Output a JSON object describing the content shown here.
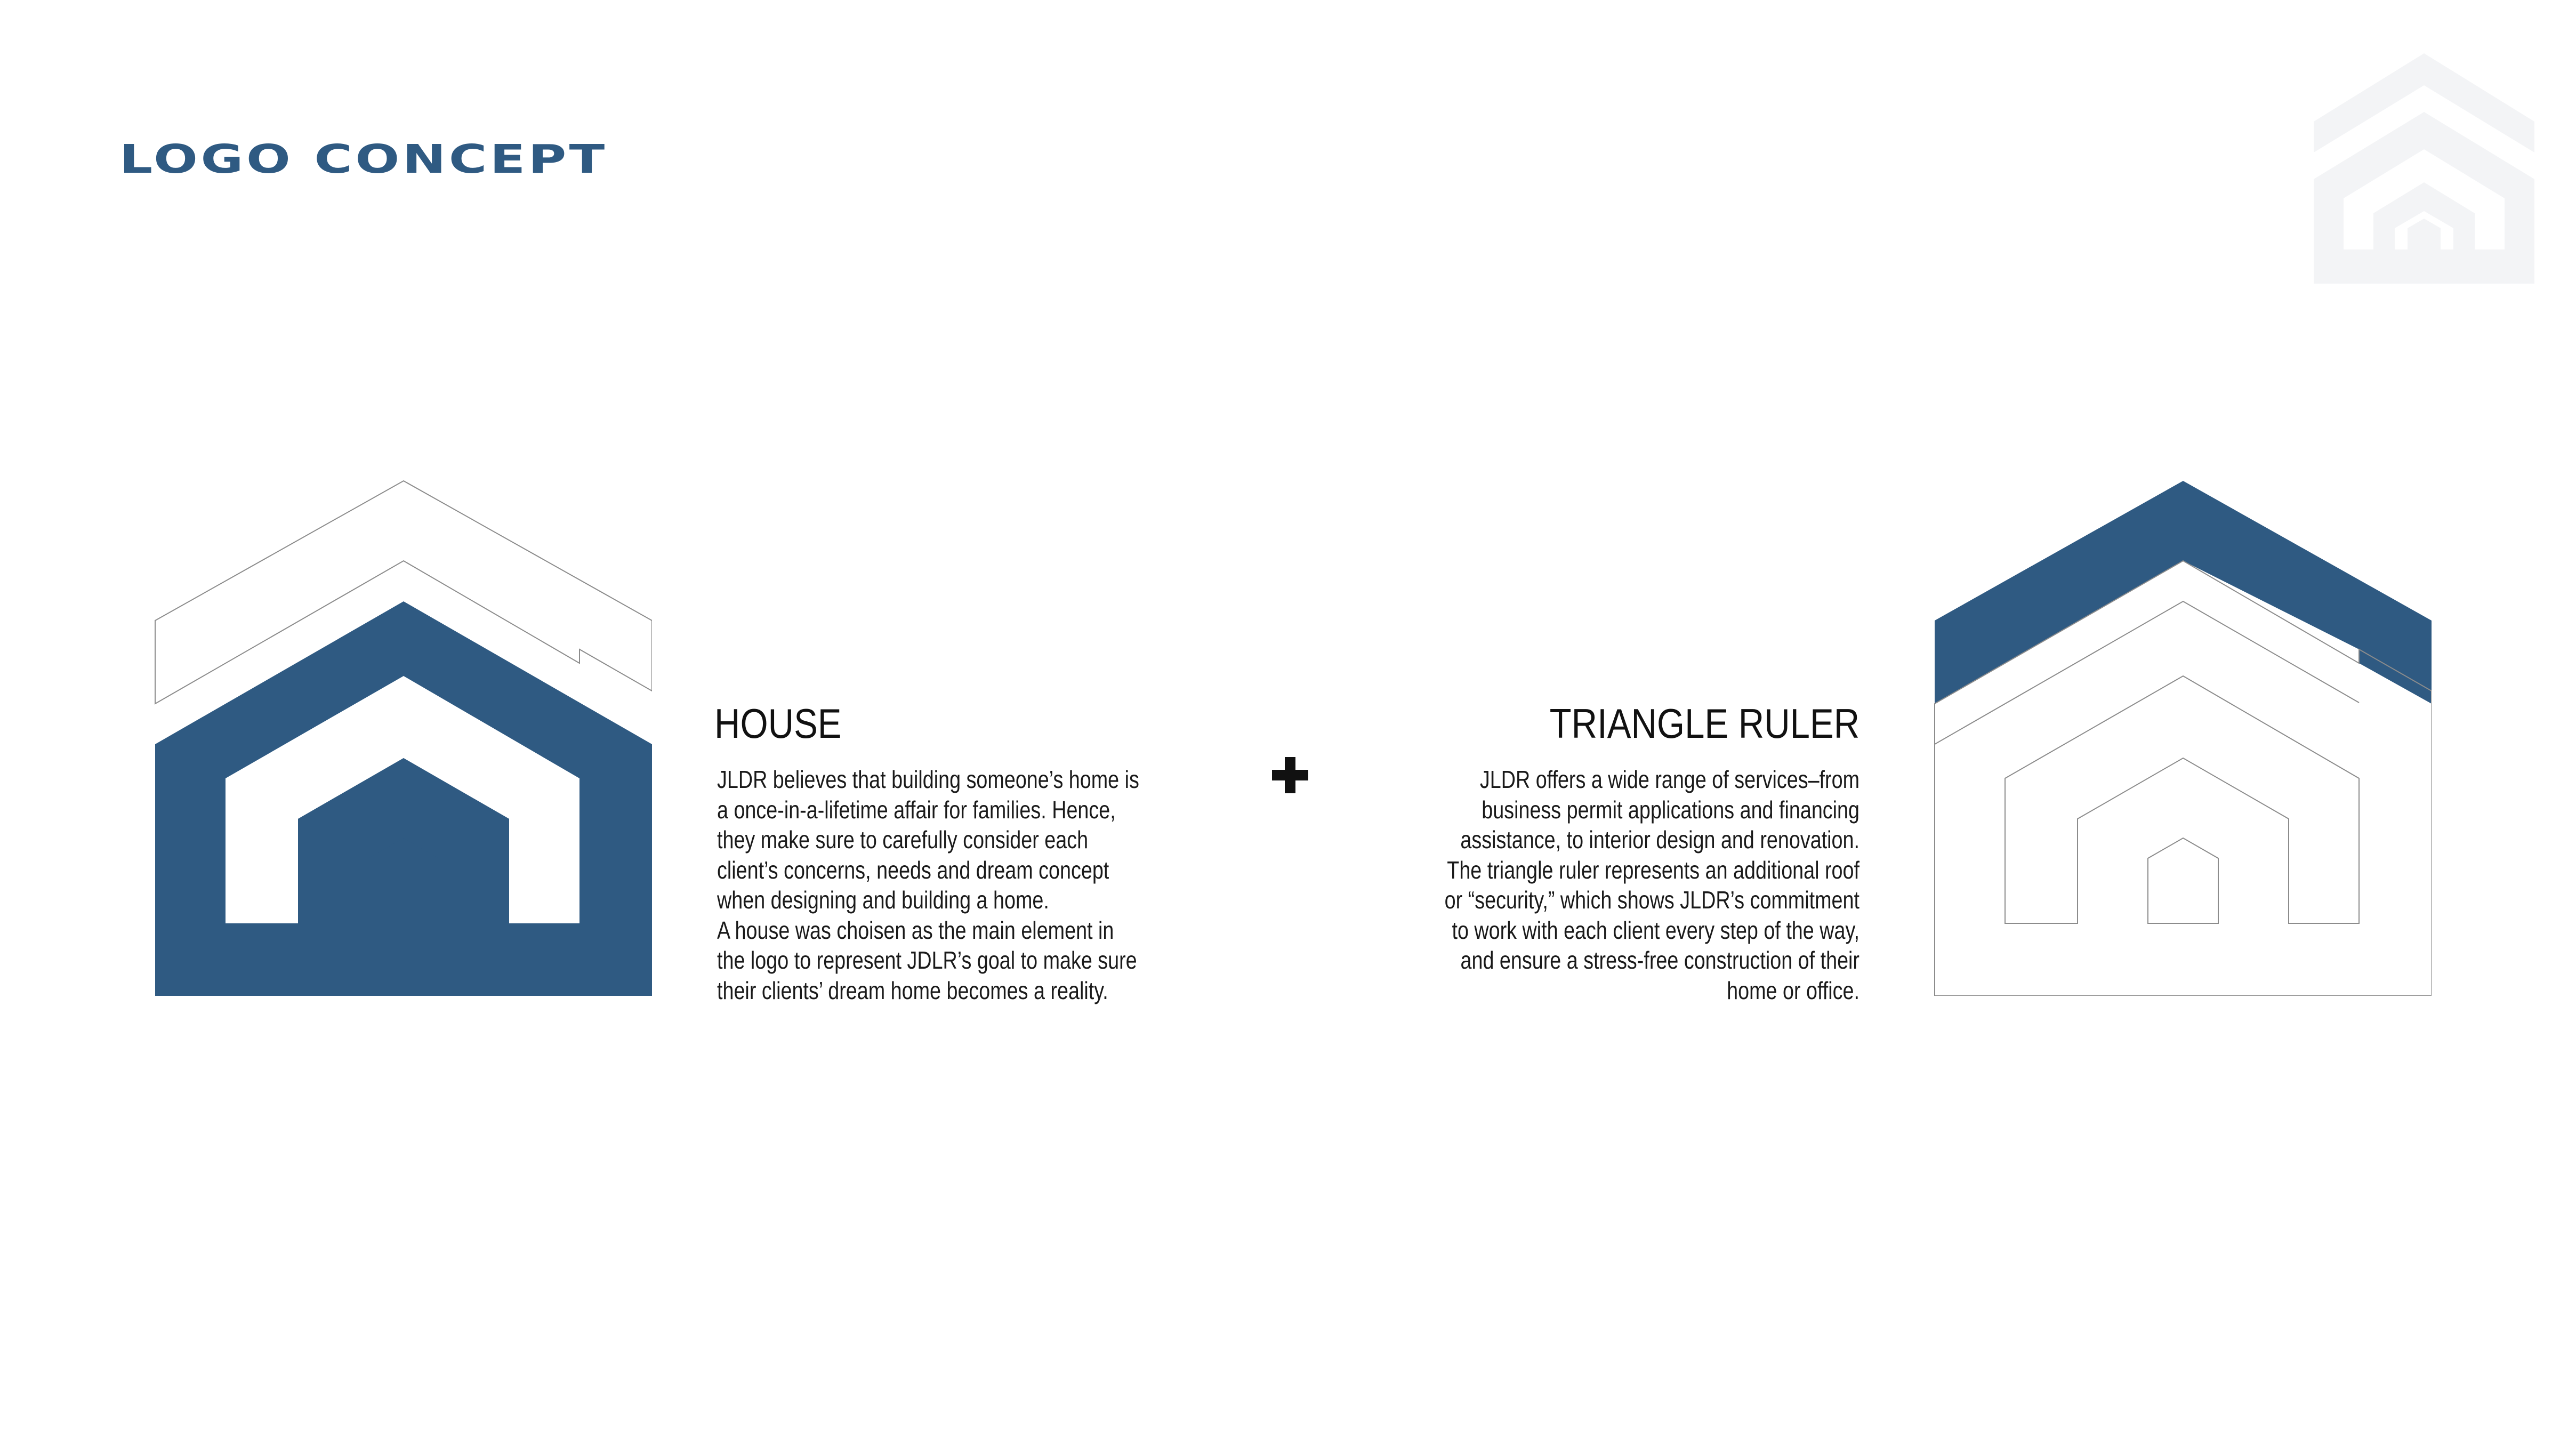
{
  "page": {
    "title": "LOGO CONCEPT"
  },
  "colors": {
    "brand": "#2f5a82",
    "outline": "#8c8c8c",
    "watermark": "#f3f4f6",
    "text": "#1a1a1a"
  },
  "icons": {
    "watermark": "house-logo-icon",
    "house": "house-concept-icon",
    "ruler": "triangle-ruler-concept-icon",
    "plus": "plus-icon"
  },
  "house_section": {
    "heading": "HOUSE",
    "body": "JLDR believes that building someone’s home is\na once-in-a-lifetime affair for families. Hence,\nthey make sure to carefully consider each\nclient’s concerns, needs and dream concept\nwhen designing and building a home.\nA house was choisen as the main element in\nthe logo to represent JDLR’s goal to make sure\ntheir clients’ dream home becomes a reality."
  },
  "ruler_section": {
    "heading": "TRIANGLE RULER",
    "body": "JLDR offers a wide range of services–from\nbusiness permit applications and financing\nassistance, to interior design and renovation.\nThe triangle ruler represents an additional roof\nor “security,” which shows JLDR’s commitment\nto work with each client every step of the way,\nand ensure a stress-free construction of their\nhome or office."
  }
}
